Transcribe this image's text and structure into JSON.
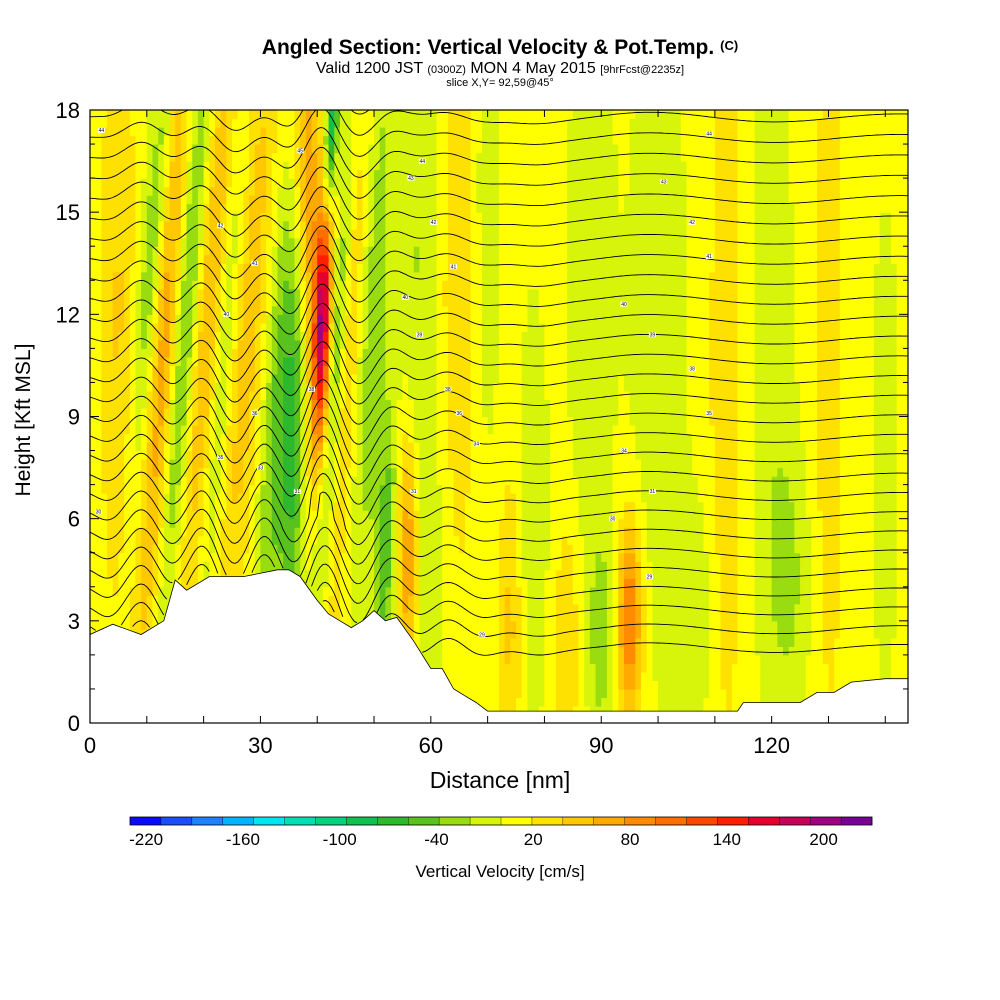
{
  "chart_data": {
    "type": "heatmap",
    "title": "Angled Section: Vertical Velocity & Pot.Temp.",
    "title_unit": "(C)",
    "subtitle_main_a": "Valid 1200 JST",
    "subtitle_small_a": "(0300Z)",
    "subtitle_main_b": "MON 4 May 2015",
    "subtitle_small_b": "[9hrFcst@2235z]",
    "subtitle2": "slice X,Y= 92,59@45°",
    "xlabel": "Distance [nm]",
    "ylabel": "Height [Kft MSL]",
    "xlim": [
      0,
      144
    ],
    "ylim": [
      0,
      18
    ],
    "x_ticks": [
      0,
      30,
      60,
      90,
      120
    ],
    "y_ticks": [
      0,
      3,
      6,
      9,
      12,
      15,
      18
    ],
    "grid": false,
    "colorbar": {
      "label": "Vertical Velocity [cm/s]",
      "min": -230,
      "max": 230,
      "tick_labels": [
        -220,
        -160,
        -100,
        -40,
        20,
        80,
        140,
        200
      ],
      "colors": [
        "#0a0aff",
        "#1a4dff",
        "#1e82ff",
        "#00b4ff",
        "#00e6f0",
        "#00e0b4",
        "#00d27d",
        "#0fc24d",
        "#2eb82e",
        "#5ac21e",
        "#99dd11",
        "#d6f50a",
        "#ffff00",
        "#ffe100",
        "#ffc800",
        "#ffaa00",
        "#ff8c00",
        "#ff6e00",
        "#ff4600",
        "#ff1e00",
        "#e6002d",
        "#c8005a",
        "#a00082",
        "#780096"
      ]
    },
    "vertical_velocity_field": {
      "units": "cm/s",
      "background": 10,
      "features": [
        {
          "x": 5,
          "z": 12,
          "w": 30,
          "sx": 2,
          "sz": 6,
          "tilt": 0
        },
        {
          "x": 11,
          "z": 14,
          "w": -45,
          "sx": 1.5,
          "sz": 5,
          "tilt": 0.45
        },
        {
          "x": 13,
          "z": 11,
          "w": 60,
          "sx": 1.6,
          "sz": 7,
          "tilt": 0.4
        },
        {
          "x": 17,
          "z": 12,
          "w": -55,
          "sx": 1.5,
          "sz": 7,
          "tilt": 0.45
        },
        {
          "x": 21,
          "z": 12,
          "w": 50,
          "sx": 1.8,
          "sz": 7,
          "tilt": 0.4
        },
        {
          "x": 23,
          "z": 10,
          "w": -35,
          "sx": 1.5,
          "sz": 6,
          "tilt": 0.5
        },
        {
          "x": 28,
          "z": 12,
          "w": 40,
          "sx": 2,
          "sz": 7,
          "tilt": 0.4
        },
        {
          "x": 33,
          "z": 9,
          "w": -55,
          "sx": 1.8,
          "sz": 6,
          "tilt": 0.35
        },
        {
          "x": 36,
          "z": 8,
          "w": -70,
          "sx": 1.5,
          "sz": 4,
          "tilt": 0.2
        },
        {
          "x": 38.5,
          "z": 15,
          "w": 70,
          "sx": 1.8,
          "sz": 6,
          "tilt": -0.2
        },
        {
          "x": 41,
          "z": 12,
          "w": 160,
          "sx": 1.0,
          "sz": 2.5,
          "tilt": 0.15
        },
        {
          "x": 43,
          "z": 10,
          "w": -60,
          "sx": 1.3,
          "sz": 7,
          "tilt": 0.45
        },
        {
          "x": 42.5,
          "z": 17.5,
          "w": -110,
          "sx": 0.8,
          "sz": 2,
          "tilt": 0.3
        },
        {
          "x": 46,
          "z": 13,
          "w": 40,
          "sx": 1.5,
          "sz": 6,
          "tilt": 0.3
        },
        {
          "x": 50,
          "z": 12,
          "w": -40,
          "sx": 2,
          "sz": 7,
          "tilt": 0.3
        },
        {
          "x": 52,
          "z": 5,
          "w": -60,
          "sx": 1.3,
          "sz": 3,
          "tilt": 0.2
        },
        {
          "x": 56,
          "z": 5,
          "w": 80,
          "sx": 1.3,
          "sz": 2.5,
          "tilt": 0
        },
        {
          "x": 58,
          "z": 14,
          "w": -30,
          "sx": 2,
          "sz": 8,
          "tilt": 0.1
        },
        {
          "x": 60,
          "z": 4,
          "w": -25,
          "sx": 2,
          "sz": 3,
          "tilt": 0
        },
        {
          "x": 65,
          "z": 13,
          "w": 25,
          "sx": 2,
          "sz": 6,
          "tilt": 0
        },
        {
          "x": 70,
          "z": 15,
          "w": -20,
          "sx": 2,
          "sz": 6,
          "tilt": 0
        },
        {
          "x": 74,
          "z": 3,
          "w": 35,
          "sx": 1.5,
          "sz": 3,
          "tilt": 0
        },
        {
          "x": 78,
          "z": 6,
          "w": -25,
          "sx": 2,
          "sz": 5,
          "tilt": 0
        },
        {
          "x": 84,
          "z": 2.5,
          "w": 30,
          "sx": 1.5,
          "sz": 2.5,
          "tilt": 0
        },
        {
          "x": 90,
          "z": 2.5,
          "w": -40,
          "sx": 1.5,
          "sz": 2,
          "tilt": 0
        },
        {
          "x": 95,
          "z": 3,
          "w": 95,
          "sx": 1.5,
          "sz": 2,
          "tilt": 0
        },
        {
          "x": 88,
          "z": 13,
          "w": -25,
          "sx": 3,
          "sz": 7,
          "tilt": 0
        },
        {
          "x": 100,
          "z": 12,
          "w": -22,
          "sx": 4,
          "sz": 8,
          "tilt": 0
        },
        {
          "x": 106,
          "z": 3,
          "w": -25,
          "sx": 3,
          "sz": 2.5,
          "tilt": 0
        },
        {
          "x": 112,
          "z": 10,
          "w": 25,
          "sx": 2,
          "sz": 8,
          "tilt": 0
        },
        {
          "x": 120,
          "z": 12,
          "w": -22,
          "sx": 3,
          "sz": 7,
          "tilt": 0
        },
        {
          "x": 123,
          "z": 4,
          "w": -30,
          "sx": 3,
          "sz": 3,
          "tilt": 0
        },
        {
          "x": 130,
          "z": 10,
          "w": 20,
          "sx": 2,
          "sz": 8,
          "tilt": 0
        },
        {
          "x": 140,
          "z": 8,
          "w": -20,
          "sx": 2,
          "sz": 6,
          "tilt": 0
        }
      ]
    },
    "terrain": {
      "units": "kft",
      "x": [
        0,
        4,
        9,
        13,
        15,
        17,
        21,
        27,
        33,
        35,
        37,
        40,
        42,
        44,
        46,
        48,
        50,
        52,
        54,
        57,
        60,
        62,
        64,
        66,
        68,
        70,
        75,
        95,
        114,
        115,
        120,
        125,
        128,
        131,
        134,
        140,
        144
      ],
      "z": [
        2.6,
        2.9,
        2.6,
        3.0,
        4.2,
        3.9,
        4.3,
        4.3,
        4.5,
        4.5,
        4.3,
        3.6,
        3.2,
        3.0,
        2.8,
        3.0,
        3.3,
        3.0,
        3.1,
        2.4,
        1.6,
        1.6,
        1.0,
        0.8,
        0.6,
        0.35,
        0.35,
        0.35,
        0.35,
        0.6,
        0.6,
        0.6,
        0.9,
        0.9,
        1.2,
        1.3,
        1.3
      ]
    },
    "potential_temperature": {
      "units": "C",
      "contour_interval": 1,
      "min": 20,
      "max": 49,
      "contour_labels": [
        {
          "x": 2,
          "z": 17.4,
          "text": "44"
        },
        {
          "x": 37,
          "z": 16.8,
          "text": "45"
        },
        {
          "x": 58.5,
          "z": 16.5,
          "text": "44"
        },
        {
          "x": 56.5,
          "z": 16.0,
          "text": "43"
        },
        {
          "x": 101,
          "z": 15.9,
          "text": "43"
        },
        {
          "x": 109,
          "z": 17.3,
          "text": "44"
        },
        {
          "x": 23,
          "z": 14.6,
          "text": "42"
        },
        {
          "x": 60.5,
          "z": 14.7,
          "text": "42"
        },
        {
          "x": 106,
          "z": 14.7,
          "text": "42"
        },
        {
          "x": 29,
          "z": 13.5,
          "text": "41"
        },
        {
          "x": 64,
          "z": 13.4,
          "text": "41"
        },
        {
          "x": 109,
          "z": 13.7,
          "text": "41"
        },
        {
          "x": 24,
          "z": 12.0,
          "text": "40"
        },
        {
          "x": 55.5,
          "z": 12.5,
          "text": "40"
        },
        {
          "x": 94,
          "z": 12.3,
          "text": "40"
        },
        {
          "x": 58,
          "z": 11.4,
          "text": "39"
        },
        {
          "x": 99,
          "z": 11.4,
          "text": "39"
        },
        {
          "x": 106,
          "z": 10.4,
          "text": "38"
        },
        {
          "x": 39,
          "z": 9.8,
          "text": "38"
        },
        {
          "x": 63,
          "z": 9.8,
          "text": "38"
        },
        {
          "x": 29,
          "z": 9.1,
          "text": "36"
        },
        {
          "x": 65,
          "z": 9.1,
          "text": "36"
        },
        {
          "x": 109,
          "z": 9.1,
          "text": "35"
        },
        {
          "x": 23,
          "z": 7.8,
          "text": "35"
        },
        {
          "x": 68,
          "z": 8.2,
          "text": "34"
        },
        {
          "x": 94,
          "z": 8.0,
          "text": "34"
        },
        {
          "x": 30,
          "z": 7.5,
          "text": "33"
        },
        {
          "x": 36.5,
          "z": 6.8,
          "text": "31"
        },
        {
          "x": 57,
          "z": 6.8,
          "text": "31"
        },
        {
          "x": 99,
          "z": 6.8,
          "text": "31"
        },
        {
          "x": 1.5,
          "z": 6.2,
          "text": "30"
        },
        {
          "x": 92,
          "z": 6.0,
          "text": "30"
        },
        {
          "x": 98.5,
          "z": 4.3,
          "text": "29"
        },
        {
          "x": 69,
          "z": 2.6,
          "text": "29"
        }
      ]
    }
  }
}
